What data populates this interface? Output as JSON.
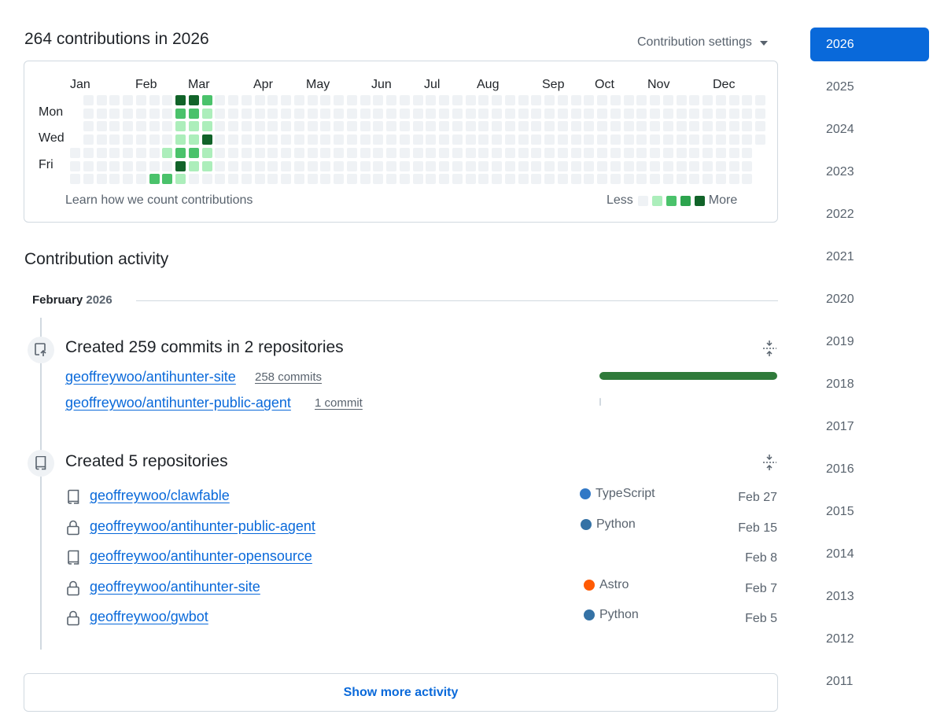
{
  "header": {
    "title": "264 contributions in 2026",
    "settings_label": "Contribution settings"
  },
  "graph": {
    "months": [
      "Jan",
      "Feb",
      "Mar",
      "Apr",
      "May",
      "Jun",
      "Jul",
      "Aug",
      "Sep",
      "Oct",
      "Nov",
      "Dec"
    ],
    "days": [
      "Mon",
      "Wed",
      "Fri"
    ],
    "learn_link": "Learn how we count contributions",
    "legend_less": "Less",
    "legend_more": "More",
    "colors": [
      "#eff2f5",
      "#aceebb",
      "#4ac26b",
      "#2da44e",
      "#116329"
    ],
    "levels": {
      "6": [
        0,
        0,
        0,
        0,
        0,
        0,
        2
      ],
      "7": [
        0,
        0,
        0,
        0,
        1,
        0,
        2
      ],
      "8": [
        4,
        2,
        1,
        1,
        2,
        4,
        1
      ],
      "9": [
        4,
        2,
        1,
        1,
        2,
        1,
        0
      ],
      "10": [
        2,
        1,
        1,
        4,
        1,
        1,
        0
      ]
    }
  },
  "activity": {
    "title": "Contribution activity",
    "month": "February",
    "year": "2026",
    "commits": {
      "title": "Created 259 commits in 2 repositories",
      "repos": [
        {
          "name": "geoffreywoo/antihunter-site",
          "count": "258 commits",
          "fraction": 1.0
        },
        {
          "name": "geoffreywoo/antihunter-public-agent",
          "count": "1 commit",
          "fraction": 0.004
        }
      ]
    },
    "created": {
      "title": "Created 5 repositories",
      "repos": [
        {
          "name": "geoffreywoo/clawfable",
          "icon": "repo-icon",
          "language": "TypeScript",
          "lang_color": "#3178c6",
          "date": "Feb 27"
        },
        {
          "name": "geoffreywoo/antihunter-public-agent",
          "icon": "lock-icon",
          "language": "Python",
          "lang_color": "#3572A5",
          "date": "Feb 15"
        },
        {
          "name": "geoffreywoo/antihunter-opensource",
          "icon": "repo-icon",
          "language": "",
          "lang_color": "",
          "date": "Feb 8"
        },
        {
          "name": "geoffreywoo/antihunter-site",
          "icon": "lock-icon",
          "language": "Astro",
          "lang_color": "#ff5a03",
          "date": "Feb 7"
        },
        {
          "name": "geoffreywoo/gwbot",
          "icon": "lock-icon",
          "language": "Python",
          "lang_color": "#3572A5",
          "date": "Feb 5"
        }
      ]
    },
    "show_more": "Show more activity"
  },
  "years": [
    "2026",
    "2025",
    "2024",
    "2023",
    "2022",
    "2021",
    "2020",
    "2019",
    "2018",
    "2017",
    "2016",
    "2015",
    "2014",
    "2013",
    "2012",
    "2011"
  ],
  "active_year": "2026"
}
